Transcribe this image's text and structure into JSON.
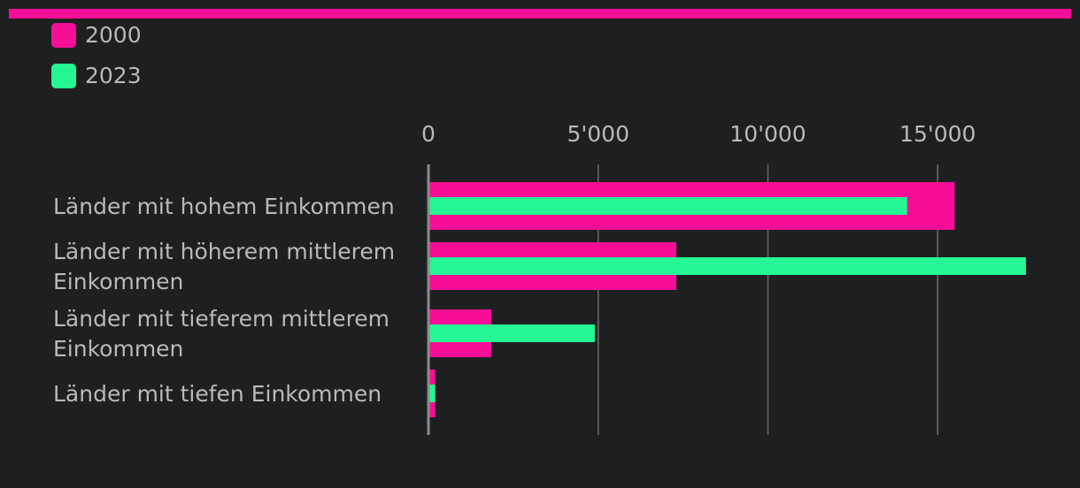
{
  "colors": {
    "accent": "#f70e96",
    "series_2000": "#f70e96",
    "series_2023": "#24f794",
    "grid": "#6b6b6b",
    "axis": "#8c8c8c",
    "text": "#b9b9b9",
    "background": "#1e1f21"
  },
  "legend": {
    "items": [
      {
        "label": "2000",
        "color": "#f70e96"
      },
      {
        "label": "2023",
        "color": "#24f794"
      }
    ]
  },
  "chart_data": {
    "type": "bar",
    "orientation": "horizontal",
    "categories": [
      [
        "Länder mit hohem Einkommen"
      ],
      [
        "Länder mit höherem mittlerem",
        "Einkommen"
      ],
      [
        "Länder mit tieferem mittlerem",
        "Einkommen"
      ],
      [
        "Länder mit tiefen Einkommen"
      ]
    ],
    "series": [
      {
        "name": "2000",
        "color": "#f70e96",
        "values": [
          15500,
          7300,
          1850,
          200
        ]
      },
      {
        "name": "2023",
        "color": "#24f794",
        "values": [
          14100,
          17600,
          4900,
          200
        ]
      }
    ],
    "xlim": [
      0,
      18000
    ],
    "ticks": [
      0,
      5000,
      10000,
      15000
    ],
    "tick_labels": [
      "0",
      "5'000",
      "10'000",
      "15'000"
    ],
    "grid": true,
    "legend_position": "top-left",
    "title": "",
    "xlabel": "",
    "ylabel": ""
  }
}
